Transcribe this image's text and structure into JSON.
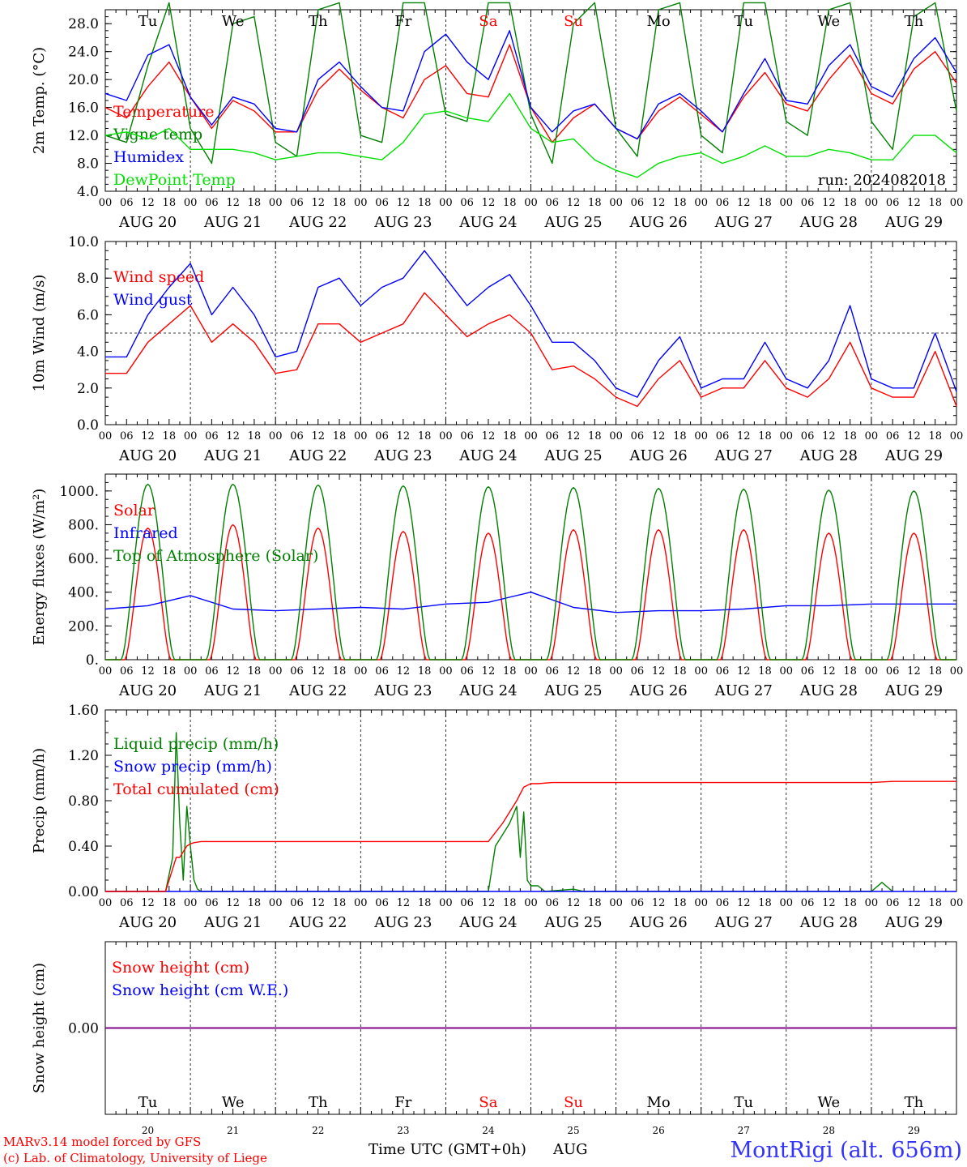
{
  "days": {
    "weekday_labels": [
      "Tu",
      "We",
      "Th",
      "Fr",
      "Sa",
      "Su",
      "Mo",
      "Tu",
      "We",
      "Th"
    ],
    "weekend_days": [
      "Sa",
      "Su"
    ],
    "date_labels": [
      "AUG 20",
      "AUG 21",
      "AUG 22",
      "AUG 23",
      "AUG 24",
      "AUG 25",
      "AUG 26",
      "AUG 27",
      "AUG 28",
      "AUG 29"
    ],
    "day_numbers": [
      "20",
      "21",
      "22",
      "23",
      "24",
      "25",
      "26",
      "27",
      "28",
      "29"
    ],
    "hour_ticks": [
      "00",
      "06",
      "12",
      "18"
    ],
    "final_hour_tick": "00"
  },
  "colors": {
    "red": "#ff0000",
    "green": "#008000",
    "blue": "#0000ff",
    "light_green": "#00e000",
    "purple": "#800080",
    "dark": "#000000"
  },
  "run_label": "run: 2024082018",
  "footer": {
    "credit_line1": "MARv3.14 model forced by GFS",
    "credit_line2": "(c) Lab. of Climatology, University of Liege",
    "xlabel": "Time UTC (GMT+0h)",
    "month": "AUG",
    "station": "MontRigi (alt. 656m)"
  },
  "chart_data": [
    {
      "type": "line",
      "ylabel": "2m Temp. (°C)",
      "ylim": [
        4,
        30
      ],
      "yticks": [
        "4.0",
        "8.0",
        "12.0",
        "16.0",
        "20.0",
        "24.0",
        "28.0"
      ],
      "ytick_values": [
        4,
        8,
        12,
        16,
        20,
        24,
        28
      ],
      "x_hours": [
        0,
        6,
        12,
        18,
        24,
        30,
        36,
        42,
        48,
        54,
        60,
        66,
        72,
        78,
        84,
        90,
        96,
        102,
        108,
        114,
        120,
        126,
        132,
        138,
        144,
        150,
        156,
        162,
        168,
        174,
        180,
        186,
        192,
        198,
        204,
        210,
        216,
        222,
        228,
        234,
        240
      ],
      "series": [
        {
          "name": "Temperature",
          "color": "red",
          "values": [
            16.0,
            14.5,
            19.0,
            22.5,
            17.5,
            13.0,
            17.0,
            15.5,
            12.5,
            12.5,
            18.5,
            21.5,
            18.5,
            16.0,
            14.5,
            20.0,
            22.0,
            18.0,
            17.5,
            25.0,
            16.0,
            11.0,
            14.5,
            16.5,
            13.0,
            11.5,
            15.5,
            17.5,
            15.0,
            12.5,
            17.5,
            21.0,
            16.5,
            15.5,
            20.0,
            23.5,
            18.0,
            16.5,
            21.5,
            24.0,
            19.5
          ]
        },
        {
          "name": "Vigne temp",
          "color": "green",
          "values": [
            12.0,
            11.0,
            22.0,
            31.0,
            13.0,
            8.0,
            28.0,
            29.0,
            11.0,
            9.0,
            30.0,
            31.0,
            12.0,
            11.0,
            31.0,
            31.0,
            15.0,
            14.0,
            31.0,
            31.0,
            15.0,
            8.0,
            28.0,
            31.0,
            13.0,
            9.0,
            30.0,
            31.0,
            12.0,
            9.5,
            31.0,
            31.0,
            14.0,
            12.0,
            30.0,
            31.0,
            14.0,
            10.0,
            29.0,
            31.0,
            15.5
          ]
        },
        {
          "name": "Humidex",
          "color": "blue",
          "values": [
            18.0,
            17.0,
            23.5,
            25.0,
            17.5,
            13.5,
            17.5,
            16.5,
            13.0,
            12.5,
            20.0,
            22.5,
            19.0,
            16.0,
            15.5,
            24.0,
            26.5,
            22.5,
            20.0,
            27.0,
            16.0,
            12.5,
            15.5,
            16.5,
            13.0,
            11.5,
            16.5,
            18.0,
            15.5,
            12.5,
            18.0,
            23.0,
            17.0,
            16.5,
            22.0,
            25.0,
            19.0,
            17.5,
            23.0,
            26.0,
            21.0
          ]
        },
        {
          "name": "DewPoint Temp",
          "color": "light_green",
          "values": [
            12.0,
            12.5,
            11.5,
            13.0,
            10.0,
            10.0,
            10.0,
            9.5,
            8.5,
            9.0,
            9.5,
            9.5,
            9.0,
            8.5,
            11.0,
            15.0,
            15.5,
            14.5,
            14.0,
            18.0,
            13.0,
            11.0,
            11.5,
            8.5,
            7.0,
            6.0,
            8.0,
            9.0,
            9.5,
            8.0,
            9.0,
            10.5,
            9.0,
            9.0,
            10.0,
            9.5,
            8.5,
            8.5,
            12.0,
            12.0,
            9.5
          ]
        }
      ]
    },
    {
      "type": "line",
      "ylabel": "10m Wind (m/s)",
      "ylim": [
        0,
        10
      ],
      "yticks": [
        "0.0",
        "2.0",
        "4.0",
        "6.0",
        "8.0",
        "10.0"
      ],
      "ytick_values": [
        0,
        2,
        4,
        6,
        8,
        10
      ],
      "reference_line": 5,
      "x_hours": [
        0,
        6,
        12,
        18,
        24,
        30,
        36,
        42,
        48,
        54,
        60,
        66,
        72,
        78,
        84,
        90,
        96,
        102,
        108,
        114,
        120,
        126,
        132,
        138,
        144,
        150,
        156,
        162,
        168,
        174,
        180,
        186,
        192,
        198,
        204,
        210,
        216,
        222,
        228,
        234,
        240
      ],
      "series": [
        {
          "name": "Wind speed",
          "color": "red",
          "values": [
            2.8,
            2.8,
            4.5,
            5.5,
            6.5,
            4.5,
            5.5,
            4.5,
            2.8,
            3.0,
            5.5,
            5.5,
            4.5,
            5.0,
            5.5,
            7.2,
            6.0,
            4.8,
            5.5,
            6.0,
            5.0,
            3.0,
            3.2,
            2.5,
            1.5,
            1.0,
            2.5,
            3.5,
            1.5,
            2.0,
            2.0,
            3.5,
            2.0,
            1.5,
            2.5,
            4.5,
            2.0,
            1.5,
            1.5,
            4.0,
            1.0
          ]
        },
        {
          "name": "Wind gust",
          "color": "blue",
          "values": [
            3.7,
            3.7,
            6.0,
            7.5,
            8.8,
            6.0,
            7.5,
            6.0,
            3.7,
            4.0,
            7.5,
            8.0,
            6.5,
            7.5,
            8.0,
            9.5,
            8.0,
            6.5,
            7.5,
            8.2,
            6.5,
            4.5,
            4.5,
            3.5,
            2.0,
            1.5,
            3.5,
            4.8,
            2.0,
            2.5,
            2.5,
            4.5,
            2.5,
            2.0,
            3.5,
            6.5,
            2.5,
            2.0,
            2.0,
            5.0,
            1.8
          ]
        }
      ]
    },
    {
      "type": "line",
      "ylabel": "Energy fluxes (W/m²)",
      "ylim": [
        0,
        1100
      ],
      "yticks": [
        "0.",
        "200.",
        "400.",
        "600.",
        "800.",
        "1000."
      ],
      "ytick_values": [
        0,
        200,
        400,
        600,
        800,
        1000
      ],
      "series": [
        {
          "name": "Solar",
          "color": "red",
          "daily_peak": [
            780,
            800,
            780,
            760,
            750,
            770,
            770,
            770,
            750,
            750
          ]
        },
        {
          "name": "Infrared",
          "color": "blue",
          "x_hours": [
            0,
            12,
            24,
            36,
            48,
            60,
            72,
            84,
            96,
            108,
            120,
            132,
            144,
            156,
            168,
            180,
            192,
            204,
            216,
            228,
            240
          ],
          "values": [
            300,
            320,
            380,
            300,
            290,
            300,
            310,
            300,
            330,
            340,
            400,
            310,
            280,
            290,
            290,
            300,
            320,
            320,
            330,
            330,
            330
          ]
        },
        {
          "name": "Top of Atmosphere (Solar)",
          "color": "green",
          "daily_peak": [
            1040,
            1040,
            1035,
            1030,
            1025,
            1020,
            1015,
            1010,
            1005,
            1000
          ]
        }
      ]
    },
    {
      "type": "line",
      "ylabel": "Precip (mm/h)",
      "ylim": [
        0,
        1.6
      ],
      "yticks": [
        "0.00",
        "0.40",
        "0.80",
        "1.20",
        "1.60"
      ],
      "ytick_values": [
        0,
        0.4,
        0.8,
        1.2,
        1.6
      ],
      "series": [
        {
          "name": "Liquid precip (mm/h)",
          "color": "green",
          "x_hours": [
            0,
            17,
            19,
            20,
            21,
            22,
            23,
            24,
            25,
            26,
            27,
            108,
            110,
            112,
            114,
            116,
            117,
            118,
            119,
            120,
            122,
            124,
            132,
            135,
            216,
            219,
            222
          ],
          "values": [
            0,
            0,
            0.3,
            1.4,
            0.6,
            0.1,
            0.75,
            0.4,
            0.1,
            0.02,
            0,
            0,
            0.4,
            0.5,
            0.6,
            0.75,
            0.3,
            0.7,
            0.1,
            0.05,
            0.05,
            0,
            0.02,
            0,
            0,
            0.08,
            0
          ]
        },
        {
          "name": "Snow precip (mm/h)",
          "color": "blue",
          "x_hours": [
            0,
            240
          ],
          "values": [
            0,
            0
          ]
        },
        {
          "name": "Total cumulated (cm)",
          "color": "red",
          "x_hours": [
            0,
            17,
            19,
            20,
            21,
            22,
            23,
            24,
            25,
            27,
            108,
            112,
            116,
            118,
            120,
            122,
            126,
            216,
            222,
            240
          ],
          "values": [
            0,
            0,
            0.2,
            0.3,
            0.3,
            0.35,
            0.4,
            0.42,
            0.43,
            0.44,
            0.44,
            0.6,
            0.8,
            0.92,
            0.95,
            0.95,
            0.96,
            0.96,
            0.97,
            0.97
          ]
        }
      ]
    },
    {
      "type": "line",
      "ylabel": "Snow height (cm)",
      "ylim": [
        -1,
        1
      ],
      "yticks": [
        "0.00"
      ],
      "ytick_values": [
        0
      ],
      "series": [
        {
          "name": "Snow height (cm)",
          "color": "red",
          "x_hours": [
            0,
            240
          ],
          "values": [
            0,
            0
          ]
        },
        {
          "name": "Snow height (cm W.E.)",
          "color": "blue",
          "x_hours": [
            0,
            240
          ],
          "values": [
            0,
            0
          ]
        }
      ]
    }
  ]
}
